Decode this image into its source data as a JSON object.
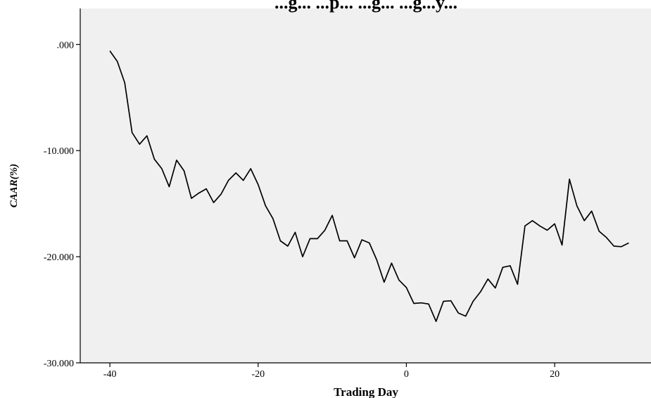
{
  "chart_data": {
    "type": "line",
    "title": "...g... ...p... ...g... ...g...y...",
    "xlabel": "Trading Day",
    "ylabel": "CAAR(%)",
    "xlim": [
      -44,
      33
    ],
    "ylim": [
      -30,
      3.4
    ],
    "x_ticks": [
      -40,
      -20,
      0,
      20
    ],
    "x_tick_labels": [
      "-40",
      "-20",
      "0",
      "20"
    ],
    "y_ticks": [
      0,
      -10,
      -20,
      -30
    ],
    "y_tick_labels": [
      ".000",
      "-10.000",
      "-20.000",
      "-30.000"
    ],
    "grid": false,
    "colors": {
      "plot_background": "#f0f0f0",
      "line": "#000000",
      "axis": "#000000"
    },
    "series": [
      {
        "x": [
          -40,
          -39,
          -38,
          -37,
          -36,
          -35,
          -34,
          -33,
          -32,
          -31,
          -30,
          -29,
          -28,
          -27,
          -26,
          -25,
          -24,
          -23,
          -22,
          -21,
          -20,
          -19,
          -18,
          -17,
          -16,
          -15,
          -14,
          -13,
          -12,
          -11,
          -10,
          -9,
          -8,
          -7,
          -6,
          -5,
          -4,
          -3,
          -2,
          -1,
          0,
          1,
          2,
          3,
          4,
          5,
          6,
          7,
          8,
          9,
          10,
          11,
          12,
          13,
          14,
          15,
          16,
          17,
          18,
          19,
          20,
          21,
          22,
          23,
          24,
          25,
          26,
          27,
          28,
          29,
          30
        ],
        "values": [
          -0.6,
          -1.6,
          -3.6,
          -8.3,
          -9.4,
          -8.6,
          -10.8,
          -11.7,
          -13.4,
          -10.9,
          -11.9,
          -14.5,
          -14.0,
          -13.6,
          -14.9,
          -14.1,
          -12.8,
          -12.1,
          -12.8,
          -11.7,
          -13.2,
          -15.2,
          -16.4,
          -18.5,
          -19.0,
          -17.7,
          -20.0,
          -18.3,
          -18.3,
          -17.5,
          -16.1,
          -18.5,
          -18.5,
          -20.1,
          -18.4,
          -18.7,
          -20.3,
          -22.4,
          -20.6,
          -22.2,
          -22.9,
          -24.4,
          -24.35,
          -24.45,
          -26.1,
          -24.2,
          -24.15,
          -25.3,
          -25.6,
          -24.2,
          -23.3,
          -22.1,
          -22.95,
          -21.0,
          -20.85,
          -22.6,
          -17.1,
          -16.6,
          -17.1,
          -17.5,
          -16.9,
          -18.9,
          -12.7,
          -15.2,
          -16.6,
          -15.7,
          -17.6,
          -18.2,
          -19.0,
          -19.05,
          -18.7
        ]
      }
    ]
  }
}
